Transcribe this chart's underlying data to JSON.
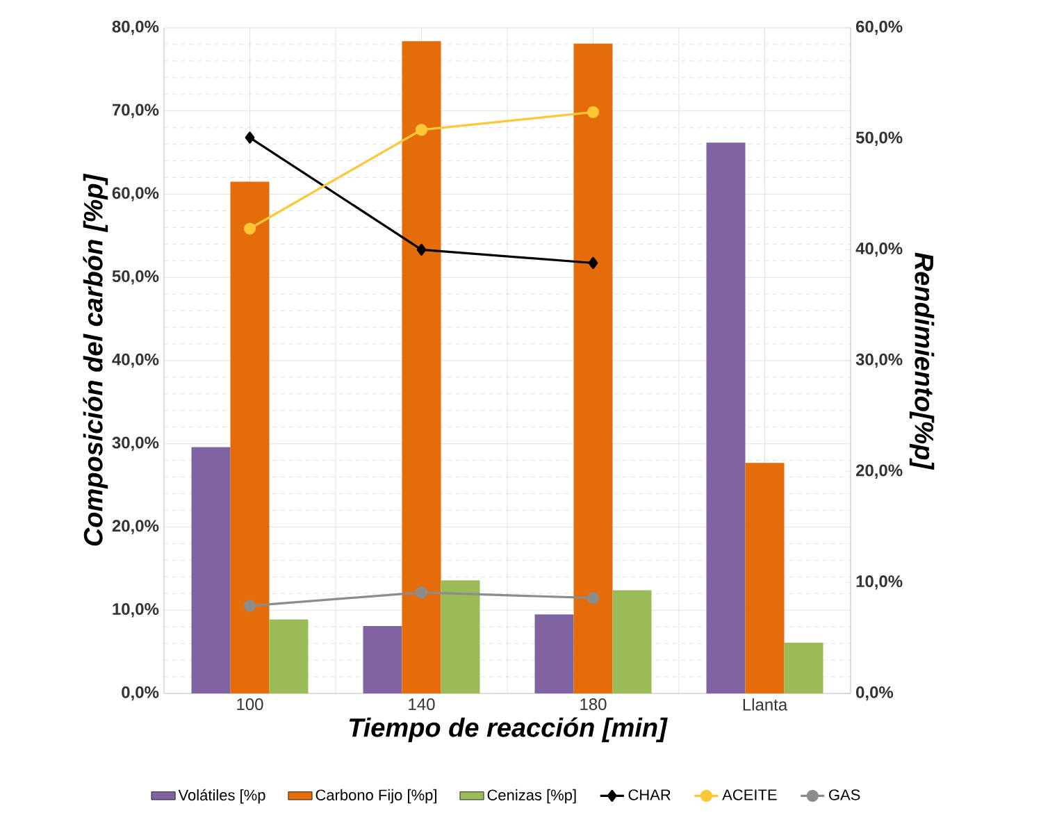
{
  "chart_data": {
    "type": "bar",
    "xlabel": "Tiempo de reacción [min]",
    "ylabel": "Composición del carbón [%p]",
    "y2label": "Rendimiento[%p]",
    "categories": [
      "100",
      "140",
      "180",
      "Llanta"
    ],
    "series": [
      {
        "name": "Volátiles [%p",
        "color": "#8064a2",
        "values": [
          29.6,
          8.1,
          9.5,
          66.2
        ]
      },
      {
        "name": "Carbono Fijo [%p]",
        "color": "#e46c0a",
        "values": [
          61.5,
          78.4,
          78.1,
          27.7
        ]
      },
      {
        "name": "Cenizas [%p]",
        "color": "#9bbb59",
        "values": [
          8.9,
          13.6,
          12.4,
          6.1
        ]
      },
      {
        "name": "CHAR",
        "type": "line",
        "axis": "y2",
        "color": "#000000",
        "marker": "diamond",
        "values": [
          50.1,
          40.0,
          38.8,
          null
        ]
      },
      {
        "name": "ACEITE",
        "type": "line",
        "axis": "y2",
        "color": "#ffc735",
        "marker": "circle",
        "values": [
          41.9,
          50.8,
          52.4,
          null
        ]
      },
      {
        "name": "GAS",
        "type": "line",
        "axis": "y2",
        "color": "#8c8c8c",
        "marker": "circle",
        "values": [
          7.9,
          9.1,
          8.6,
          null
        ]
      }
    ],
    "ylim": [
      0,
      80
    ],
    "yticks": [
      {
        "value": 0,
        "label": "0,0%"
      },
      {
        "value": 10,
        "label": "10,0%"
      },
      {
        "value": 20,
        "label": "20,0%"
      },
      {
        "value": 30,
        "label": "30,0%"
      },
      {
        "value": 40,
        "label": "40,0%"
      },
      {
        "value": 50,
        "label": "50,0%"
      },
      {
        "value": 60,
        "label": "60,0%"
      },
      {
        "value": 70,
        "label": "70,0%"
      },
      {
        "value": 80,
        "label": "80,0%"
      }
    ],
    "y2lim": [
      0,
      60
    ],
    "y2ticks": [
      {
        "value": 0,
        "label": "0,0%"
      },
      {
        "value": 10,
        "label": "10,0%"
      },
      {
        "value": 20,
        "label": "20,0%"
      },
      {
        "value": 30,
        "label": "30,0%"
      },
      {
        "value": 40,
        "label": "40,0%"
      },
      {
        "value": 50,
        "label": "50,0%"
      },
      {
        "value": 60,
        "label": "60,0%"
      }
    ],
    "grid": true,
    "legend": "bottom"
  }
}
